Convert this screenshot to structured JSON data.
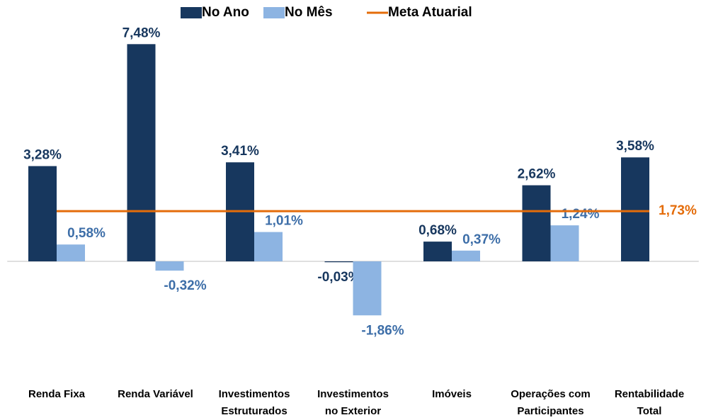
{
  "chart_data": {
    "type": "bar",
    "categories": [
      "Renda Fixa",
      "Renda Variável",
      "Investimentos\nEstruturados",
      "Investimentos\nno Exterior",
      "Imóveis",
      "Operações com\nParticipantes",
      "Rentabilidade\nTotal"
    ],
    "series": [
      {
        "name": "No Ano",
        "color": "#17375e",
        "label_color": "#17375e",
        "values": [
          3.28,
          7.48,
          3.41,
          -0.03,
          0.68,
          2.62,
          3.58
        ],
        "value_labels": [
          "3,28%",
          "7,48%",
          "3,41%",
          "-0,03%",
          "0,68%",
          "2,62%",
          "3,58%"
        ]
      },
      {
        "name": "No Mês",
        "color": "#8db4e2",
        "label_color": "#3d6ea8",
        "values": [
          0.58,
          -0.32,
          1.01,
          -1.86,
          0.37,
          1.24,
          null
        ],
        "value_labels": [
          "0,58%",
          "-0,32%",
          "1,01%",
          "-1,86%",
          "0,37%",
          "1,24%",
          null
        ]
      }
    ],
    "meta": {
      "name": "Meta Atuarial",
      "color": "#e46c0a",
      "value": 1.73,
      "value_label": "1,73%"
    },
    "ylim": [
      -2.5,
      7.5
    ]
  }
}
